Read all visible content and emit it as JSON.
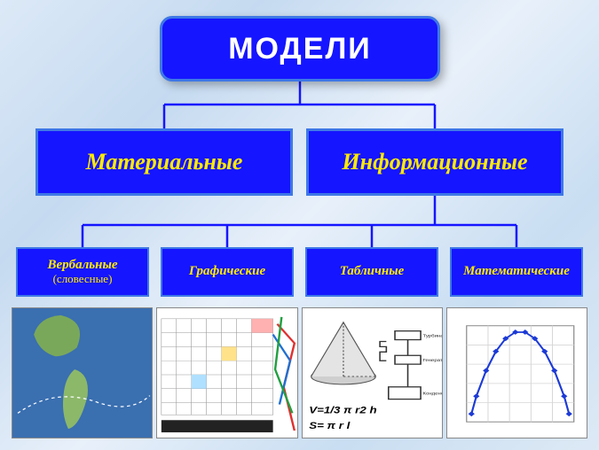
{
  "type": "tree",
  "colors": {
    "node_bg": "#1515ff",
    "node_border": "#3e78e6",
    "root_text": "#ffffff",
    "child_text": "#ffea00",
    "connector": "#1515ff",
    "page_bg_tones": [
      "#dce9f7",
      "#c5daf0",
      "#e8f0fa",
      "#c9def2",
      "#dde9f5"
    ]
  },
  "root": {
    "label": "МОДЕЛИ",
    "fontsize": 34
  },
  "level2": [
    {
      "label": "Материальные",
      "fontsize": 26
    },
    {
      "label": "Информационные",
      "fontsize": 26
    }
  ],
  "level3": [
    {
      "label": "Вербальные",
      "sublabel": "(словесные)",
      "fontsize": 15
    },
    {
      "label": "Графические",
      "fontsize": 15
    },
    {
      "label": "Табличные",
      "fontsize": 15
    },
    {
      "label": "Математические",
      "fontsize": 15
    }
  ],
  "illustrations": [
    {
      "name": "map-americas",
      "caption": ""
    },
    {
      "name": "periodic-table-with-metro-map",
      "caption": ""
    },
    {
      "name": "cone-volume-formula",
      "formula1": "V=1/3 π r2 h",
      "formula2": "S= π r l",
      "diagram_labels": {
        "right_top": "Турбина",
        "right_mid": "Генератор",
        "right_bottom": "Конденсатор"
      }
    },
    {
      "name": "parabola-chart",
      "chart": {
        "type": "line",
        "curve": "parabola-down",
        "marker": "diamond",
        "marker_color": "#1c3ad6",
        "line_color": "#1c3ad6",
        "grid_color": "#d6d6d6",
        "xlim": [
          0,
          11
        ],
        "ylim": [
          0,
          6
        ],
        "points": [
          [
            0.5,
            0.5
          ],
          [
            1,
            1.6
          ],
          [
            2,
            3.2
          ],
          [
            3,
            4.4
          ],
          [
            4,
            5.2
          ],
          [
            5,
            5.6
          ],
          [
            6,
            5.6
          ],
          [
            7,
            5.2
          ],
          [
            8,
            4.4
          ],
          [
            9,
            3.2
          ],
          [
            10,
            1.6
          ],
          [
            10.5,
            0.5
          ]
        ]
      }
    }
  ]
}
